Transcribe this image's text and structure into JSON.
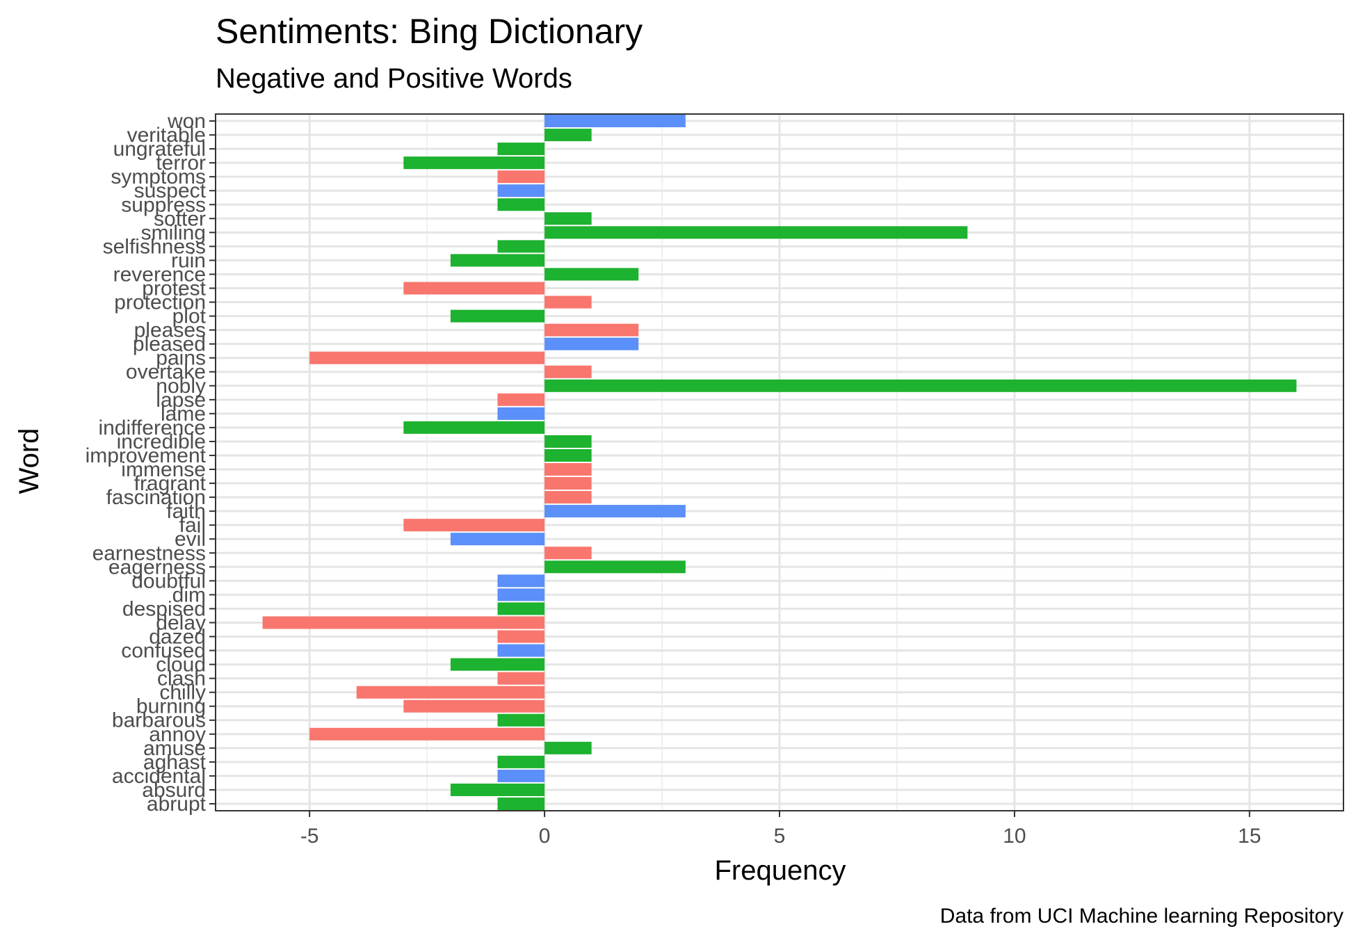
{
  "chart_data": {
    "type": "bar",
    "orientation": "horizontal",
    "title": "Sentiments: Bing Dictionary",
    "subtitle": "Negative and Positive Words",
    "xlabel": "Frequency",
    "ylabel": "Word",
    "caption": "Data from UCI Machine learning Repository",
    "xlim": [
      -7,
      17
    ],
    "x_ticks": [
      -5,
      0,
      5,
      10,
      15
    ],
    "x_tick_labels": [
      "-5",
      "0",
      "5",
      "10",
      "15"
    ],
    "grid": true,
    "legend": "none",
    "colors": {
      "red": "#F8766D",
      "green": "#1DB22F",
      "blue": "#5B8FF9"
    },
    "categories": [
      "abrupt",
      "absurd",
      "accidental",
      "aghast",
      "amuse",
      "annoy",
      "barbarous",
      "burning",
      "chilly",
      "clash",
      "cloud",
      "confused",
      "dazed",
      "delay",
      "despised",
      "dim",
      "doubtful",
      "eagerness",
      "earnestness",
      "evil",
      "fail",
      "faith",
      "fascination",
      "fragrant",
      "immense",
      "improvement",
      "incredible",
      "indifference",
      "lame",
      "lapse",
      "nobly",
      "overtake",
      "pains",
      "pleased",
      "pleases",
      "plot",
      "protection",
      "protest",
      "reverence",
      "ruin",
      "selfishness",
      "smiling",
      "softer",
      "suppress",
      "suspect",
      "symptoms",
      "terror",
      "ungrateful",
      "veritable",
      "won"
    ],
    "values": [
      -1,
      -2,
      -1,
      -1,
      1,
      -5,
      -1,
      -3,
      -4,
      -1,
      -2,
      -1,
      -1,
      -6,
      -1,
      -1,
      -1,
      3,
      1,
      -2,
      -3,
      3,
      1,
      1,
      1,
      1,
      1,
      -3,
      -1,
      -1,
      16,
      1,
      -5,
      2,
      2,
      -2,
      1,
      -3,
      2,
      -2,
      -1,
      9,
      1,
      -1,
      -1,
      -1,
      -3,
      -1,
      1,
      3
    ],
    "bar_colors": [
      "green",
      "green",
      "blue",
      "green",
      "green",
      "red",
      "green",
      "red",
      "red",
      "red",
      "green",
      "blue",
      "red",
      "red",
      "green",
      "blue",
      "blue",
      "green",
      "red",
      "blue",
      "red",
      "blue",
      "red",
      "red",
      "red",
      "green",
      "green",
      "green",
      "blue",
      "red",
      "green",
      "red",
      "red",
      "blue",
      "red",
      "green",
      "red",
      "red",
      "green",
      "green",
      "green",
      "green",
      "green",
      "green",
      "blue",
      "red",
      "green",
      "green",
      "green",
      "blue"
    ]
  }
}
